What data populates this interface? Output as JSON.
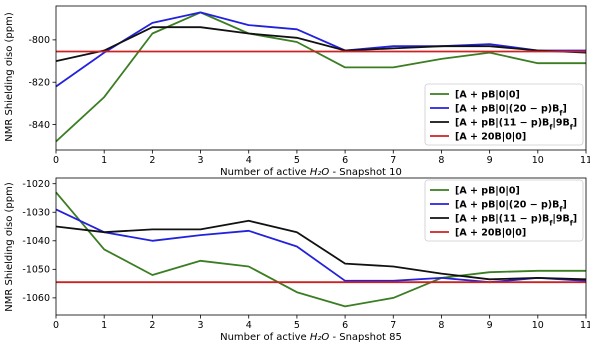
{
  "chart_data": [
    {
      "type": "line",
      "xlabel_prefix": "Number of active ",
      "xlabel_var": "H₂O",
      "xlabel_suffix": " - Snapshot 10",
      "ylabel": "NMR Shielding σiso (ppm)",
      "xlim": [
        0,
        11
      ],
      "ylim": [
        -852,
        -784
      ],
      "xticks": [
        0,
        1,
        2,
        3,
        4,
        5,
        6,
        7,
        8,
        9,
        10,
        11
      ],
      "yticks": [
        -840,
        -820,
        -800
      ],
      "legend_position": "lower-right",
      "x": [
        0,
        1,
        2,
        3,
        4,
        5,
        6,
        7,
        8,
        9,
        10,
        11
      ],
      "series": [
        {
          "name": "[A + pB|0|0]",
          "color": "#3a7d22",
          "values": [
            -848,
            -827,
            -797,
            -787,
            -797,
            -801,
            -813,
            -813,
            -809,
            -806,
            -811,
            -811
          ]
        },
        {
          "name": "[A + pB|0|(20 − p)B_f]",
          "color": "#2222dd",
          "values": [
            -822,
            -806,
            -792,
            -787,
            -793,
            -795,
            -805,
            -803,
            -803,
            -802,
            -805,
            -805
          ]
        },
        {
          "name": "[A + pB|(11 − p)B_f|9B_f]",
          "color": "#111111",
          "values": [
            -810,
            -805,
            -794,
            -794,
            -797,
            -799,
            -805,
            -804,
            -803,
            -803,
            -805,
            -806
          ]
        },
        {
          "name": "[A + 20B|0|0]",
          "color": "#cc2222",
          "values": [
            -805.5,
            -805.5,
            -805.5,
            -805.5,
            -805.5,
            -805.5,
            -805.5,
            -805.5,
            -805.5,
            -805.5,
            -805.5,
            -805.5
          ]
        }
      ]
    },
    {
      "type": "line",
      "xlabel_prefix": "Number of active ",
      "xlabel_var": "H₂O",
      "xlabel_suffix": " - Snapshot 85",
      "ylabel": "NMR Shielding σiso (ppm)",
      "xlim": [
        0,
        11
      ],
      "ylim": [
        -1066,
        -1018
      ],
      "xticks": [
        0,
        1,
        2,
        3,
        4,
        5,
        6,
        7,
        8,
        9,
        10,
        11
      ],
      "yticks": [
        -1060,
        -1050,
        -1040,
        -1030,
        -1020
      ],
      "legend_position": "upper-right",
      "x": [
        0,
        1,
        2,
        3,
        4,
        5,
        6,
        7,
        8,
        9,
        10,
        11
      ],
      "series": [
        {
          "name": "[A + pB|0|0]",
          "color": "#3a7d22",
          "values": [
            -1023,
            -1043,
            -1052,
            -1047,
            -1049,
            -1058,
            -1063,
            -1060,
            -1053,
            -1051,
            -1050.5,
            -1050.5
          ]
        },
        {
          "name": "[A + pB|0|(20 − p)B_f]",
          "color": "#2222dd",
          "values": [
            -1029,
            -1037,
            -1040,
            -1038,
            -1036.5,
            -1042,
            -1054,
            -1054,
            -1053,
            -1054.5,
            -1053,
            -1054
          ]
        },
        {
          "name": "[A + pB|(11 − p)B_f|9B_f]",
          "color": "#111111",
          "values": [
            -1035,
            -1037,
            -1036,
            -1036,
            -1033,
            -1037,
            -1048,
            -1049,
            -1051.5,
            -1053.5,
            -1053,
            -1053.5
          ]
        },
        {
          "name": "[A + 20B|0|0]",
          "color": "#cc2222",
          "values": [
            -1054.5,
            -1054.5,
            -1054.5,
            -1054.5,
            -1054.5,
            -1054.5,
            -1054.5,
            -1054.5,
            -1054.5,
            -1054.5,
            -1054.5,
            -1054.5
          ]
        }
      ]
    }
  ]
}
